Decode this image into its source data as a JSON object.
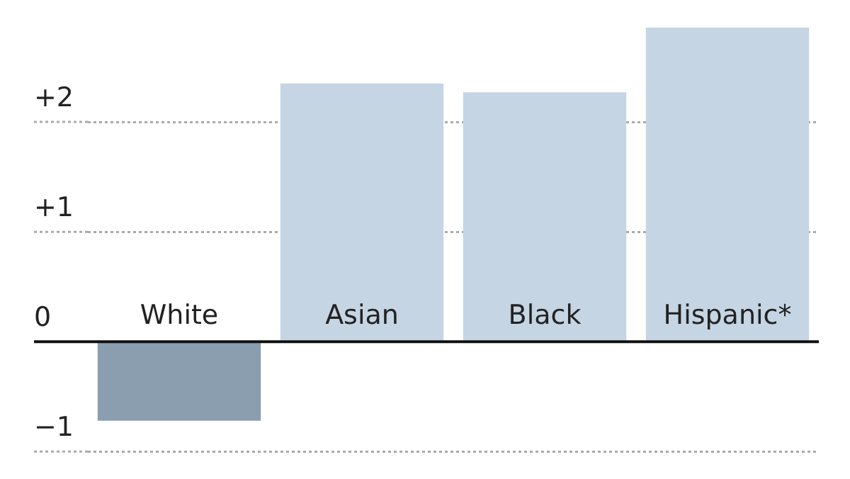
{
  "chart_data": {
    "type": "bar",
    "categories": [
      "White",
      "Asian",
      "Black",
      "Hispanic*"
    ],
    "values": [
      -0.72,
      2.35,
      2.27,
      2.86
    ],
    "colors": [
      "#8a9eb0",
      "#c5d5e3",
      "#c5d5e3",
      "#c5d5e3"
    ],
    "ylim": [
      -1,
      2.86
    ],
    "yticks": [
      {
        "value": -1,
        "label": "−1"
      },
      0,
      {
        "value": 1,
        "label": "+1"
      },
      {
        "value": 2,
        "label": "+2"
      }
    ],
    "grid": "y"
  }
}
